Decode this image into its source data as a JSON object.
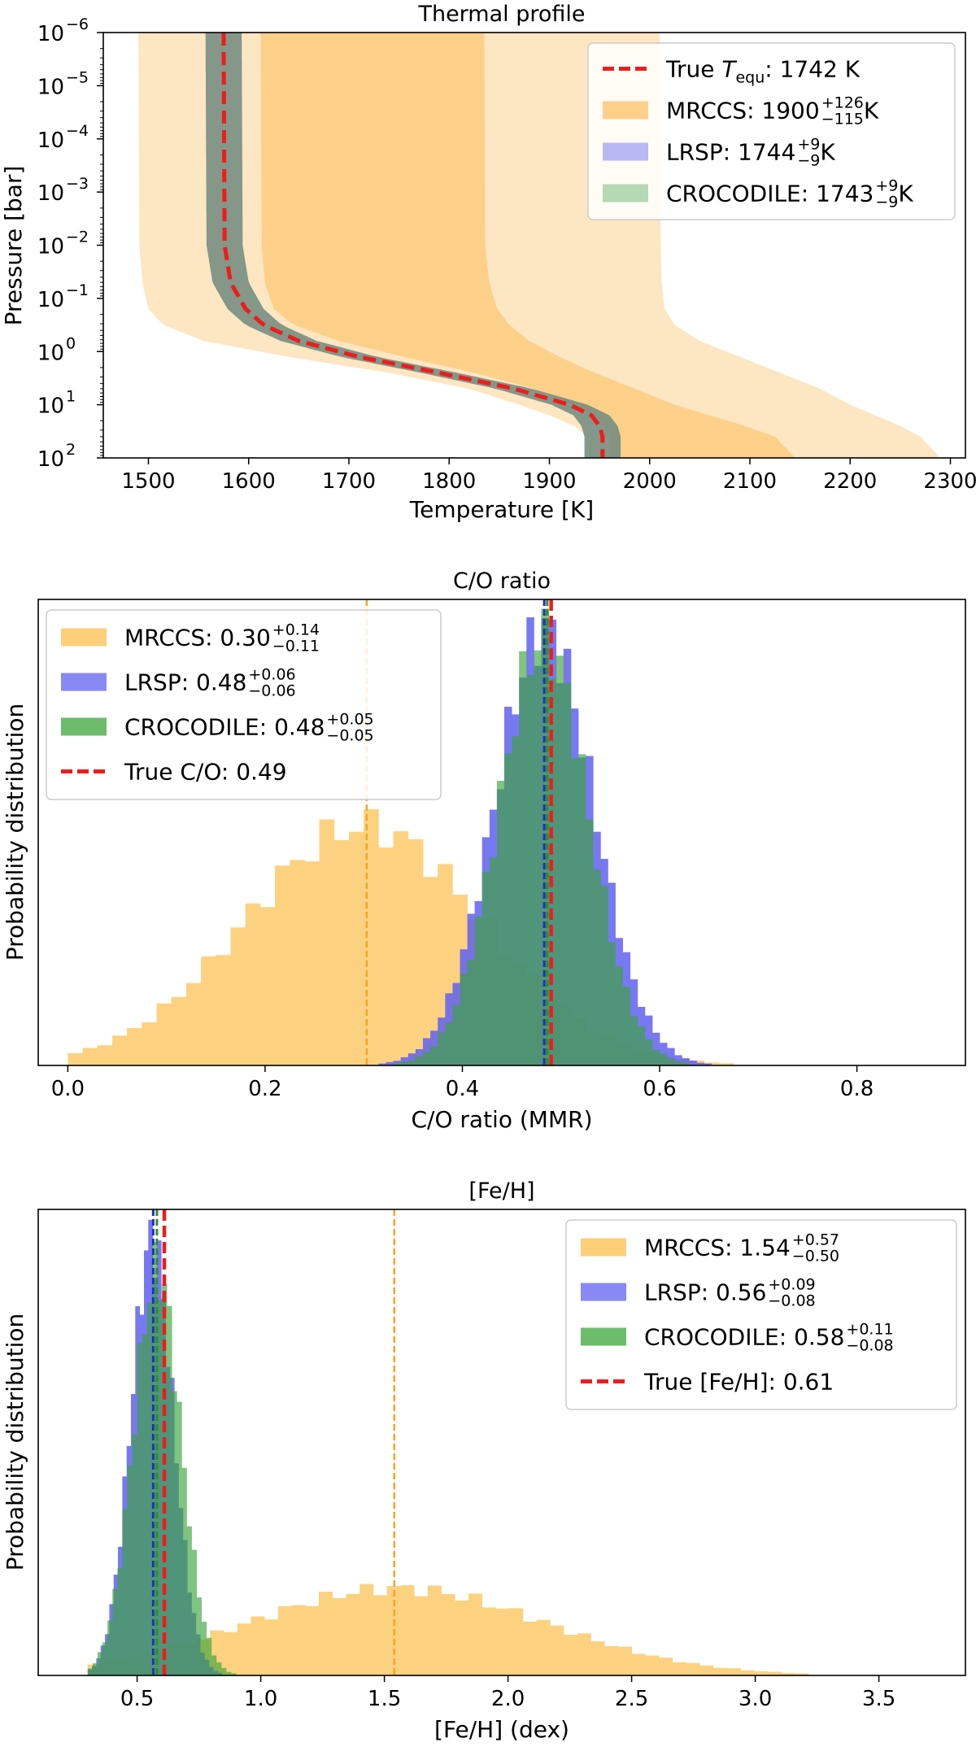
{
  "charts": [
    {
      "type": "area",
      "title": "Thermal profile",
      "xlabel": "Temperature [K]",
      "ylabel": "Pressure [bar]",
      "xlim": [
        1455,
        2315
      ],
      "ylim_log10": [
        -6,
        2
      ],
      "y_inverted": true,
      "xticks": [
        1500,
        1600,
        1700,
        1800,
        1900,
        2000,
        2100,
        2200,
        2300
      ],
      "yticks": [
        {
          "base": "10",
          "exp": "−6",
          "value": -6
        },
        {
          "base": "10",
          "exp": "−5",
          "value": -5
        },
        {
          "base": "10",
          "exp": "−4",
          "value": -4
        },
        {
          "base": "10",
          "exp": "−3",
          "value": -3
        },
        {
          "base": "10",
          "exp": "−2",
          "value": -2
        },
        {
          "base": "10",
          "exp": "−1",
          "value": -1
        },
        {
          "base": "10",
          "exp": "0",
          "value": 0
        },
        {
          "base": "10",
          "exp": "1",
          "value": 1
        },
        {
          "base": "10",
          "exp": "2",
          "value": 2
        }
      ],
      "legend_position": "top-right",
      "legend": [
        {
          "kind": "dash",
          "color": "#ee1c1c",
          "name": "True ",
          "math": "T",
          "sub": "equ",
          "tail": ": 1742 K"
        },
        {
          "kind": "patch",
          "color": "#fdd08a",
          "name": "MRCCS: 1900",
          "sup": "+126",
          "sub": "−115",
          "tail": " K"
        },
        {
          "kind": "patch",
          "color": "#b8b8f5",
          "name": "LRSP: 1744",
          "sup": "+9",
          "sub": "−9",
          "tail": " K"
        },
        {
          "kind": "patch",
          "color": "#b4d9b4",
          "name": "CROCODILE: 1743",
          "sup": "+9",
          "sub": "−9",
          "tail": " K"
        }
      ],
      "profile_logp": [
        -6,
        -2,
        -1.3,
        -0.8,
        -0.5,
        -0.2,
        0.1,
        0.4,
        0.7,
        1.0,
        1.2,
        1.4,
        1.6,
        2
      ],
      "true_profile_T": [
        1575,
        1576,
        1582,
        1597,
        1615,
        1650,
        1710,
        1790,
        1865,
        1920,
        1942,
        1950,
        1953,
        1953
      ],
      "mrccs_outer_left_T": [
        1490,
        1491,
        1494,
        1500,
        1515,
        1555,
        1640,
        1740,
        1820,
        1870,
        1900,
        1925,
        1938,
        1940
      ],
      "mrccs_outer_right_T": [
        2010,
        2011,
        2012,
        2015,
        2025,
        2050,
        2090,
        2130,
        2170,
        2200,
        2225,
        2250,
        2270,
        2290
      ],
      "mrccs_inner_left_T": [
        1612,
        1613,
        1616,
        1625,
        1645,
        1690,
        1755,
        1825,
        1885,
        1925,
        1945,
        1955,
        1960,
        1960
      ],
      "mrccs_inner_right_T": [
        1835,
        1836,
        1840,
        1848,
        1860,
        1880,
        1910,
        1945,
        1985,
        2025,
        2060,
        2095,
        2125,
        2145
      ],
      "retrieval_band_halfwidth_K": 18
    },
    {
      "type": "bar",
      "title": "C/O ratio",
      "xlabel": "C/O ratio (MMR)",
      "ylabel": "Probability distribution",
      "xlim": [
        -0.03,
        0.91
      ],
      "xticks": [
        "0.0",
        "0.2",
        "0.4",
        "0.6",
        "0.8"
      ],
      "xtick_values": [
        0.0,
        0.2,
        0.4,
        0.6,
        0.8
      ],
      "legend_position": "top-left",
      "legend": [
        {
          "kind": "patch",
          "color": "#fbbf4b",
          "name": "MRCCS: 0.30",
          "sup": "+0.14",
          "sub": "−0.11"
        },
        {
          "kind": "patch",
          "color": "#6161f2",
          "name": "LRSP: 0.48",
          "sup": "+0.06",
          "sub": "−0.06"
        },
        {
          "kind": "patch",
          "color": "#3ba53b",
          "name": "CROCODILE: 0.48",
          "sup": "+0.05",
          "sub": "−0.05"
        },
        {
          "kind": "dash",
          "color": "#ee1c1c",
          "name": "True C/O: 0.49"
        }
      ],
      "series": [
        {
          "name": "MRCCS",
          "mean": 0.3,
          "sigma": 0.12,
          "peak_value": 0.55,
          "lo": 0.0,
          "hi": 0.75,
          "bins": 50,
          "color": "#fbbf4b",
          "opacity": 0.7,
          "median_line": 0.303
        },
        {
          "name": "LRSP",
          "mean": 0.483,
          "sigma": 0.05,
          "peak_value": 1.0,
          "lo": 0.3,
          "hi": 0.66,
          "bins": 48,
          "color": "#6161f2",
          "opacity": 0.85,
          "median_line": 0.483
        },
        {
          "name": "CROCODILE",
          "mean": 0.482,
          "sigma": 0.045,
          "peak_value": 0.98,
          "lo": 0.3,
          "hi": 0.66,
          "bins": 48,
          "color": "#3ba53b",
          "opacity": 0.65,
          "median_line": 0.486
        }
      ],
      "true_value": 0.49,
      "ylim": [
        0,
        1.07
      ]
    },
    {
      "type": "bar",
      "title": "[Fe/H]",
      "xlabel": "[Fe/H] (dex)",
      "ylabel": "Probability distribution",
      "xlim": [
        0.1,
        3.85
      ],
      "xticks": [
        "0.5",
        "1.0",
        "1.5",
        "2.0",
        "2.5",
        "3.0",
        "3.5"
      ],
      "xtick_values": [
        0.5,
        1.0,
        1.5,
        2.0,
        2.5,
        3.0,
        3.5
      ],
      "legend_position": "top-right",
      "legend": [
        {
          "kind": "patch",
          "color": "#fbbf4b",
          "name": "MRCCS: 1.54",
          "sup": "+0.57",
          "sub": "−0.50"
        },
        {
          "kind": "patch",
          "color": "#6161f2",
          "name": "LRSP: 0.56",
          "sup": "+0.09",
          "sub": "−0.08"
        },
        {
          "kind": "patch",
          "color": "#3ba53b",
          "name": "CROCODILE: 0.58",
          "sup": "+0.11",
          "sub": "−0.08"
        },
        {
          "kind": "dash",
          "color": "#ee1c1c",
          "name": "True [Fe/H]: 0.61"
        }
      ],
      "series": [
        {
          "name": "MRCCS",
          "mean": 1.55,
          "sigma": 0.6,
          "peak_value": 0.2,
          "lo": 0.3,
          "hi": 3.6,
          "bins": 60,
          "color": "#fbbf4b",
          "opacity": 0.7,
          "median_line": 1.54
        },
        {
          "name": "LRSP",
          "mean": 0.56,
          "sigma": 0.085,
          "peak_value": 1.0,
          "lo": 0.3,
          "hi": 1.0,
          "bins": 40,
          "color": "#6161f2",
          "opacity": 0.85,
          "median_line": 0.565
        },
        {
          "name": "CROCODILE",
          "mean": 0.58,
          "sigma": 0.095,
          "peak_value": 0.93,
          "lo": 0.3,
          "hi": 1.2,
          "bins": 45,
          "color": "#3ba53b",
          "opacity": 0.65,
          "median_line": 0.58
        }
      ],
      "true_value": 0.61,
      "ylim": [
        0,
        1.07
      ]
    }
  ]
}
